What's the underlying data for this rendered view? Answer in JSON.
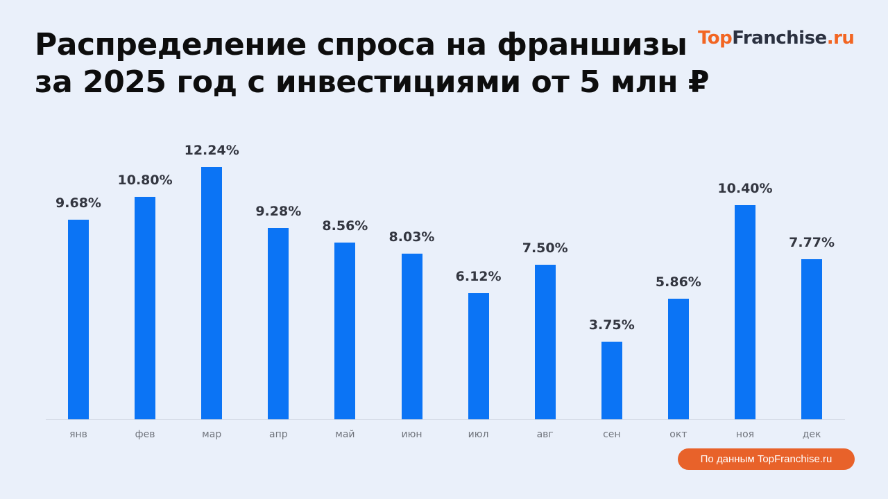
{
  "header": {
    "title_line1": "Распределение спроса на франшизы",
    "title_line2": "за 2025 год с инвестициями от 5 млн ₽",
    "logo": {
      "part1": "Top",
      "part2": "Franchise",
      "part3": ".ru"
    }
  },
  "footer": {
    "source": "По данным TopFranchise.ru"
  },
  "colors": {
    "bar": "#0b74f5",
    "accent": "#f26522",
    "background": "#eaf0fa"
  },
  "chart_data": {
    "type": "bar",
    "title": "Распределение спроса на франшизы за 2025 год с инвестициями от 5 млн ₽",
    "xlabel": "",
    "ylabel": "",
    "categories": [
      "янв",
      "фев",
      "мар",
      "апр",
      "май",
      "июн",
      "июл",
      "авг",
      "сен",
      "окт",
      "ноя",
      "дек"
    ],
    "values": [
      9.68,
      10.8,
      12.24,
      9.28,
      8.56,
      8.03,
      6.12,
      7.5,
      3.75,
      5.86,
      10.4,
      7.77
    ],
    "labels": [
      "9.68%",
      "10.80%",
      "12.24%",
      "9.28%",
      "8.56%",
      "8.03%",
      "6.12%",
      "7.50%",
      "3.75%",
      "5.86%",
      "10.40%",
      "7.77%"
    ],
    "unit": "%",
    "grid": false,
    "legend": null
  }
}
